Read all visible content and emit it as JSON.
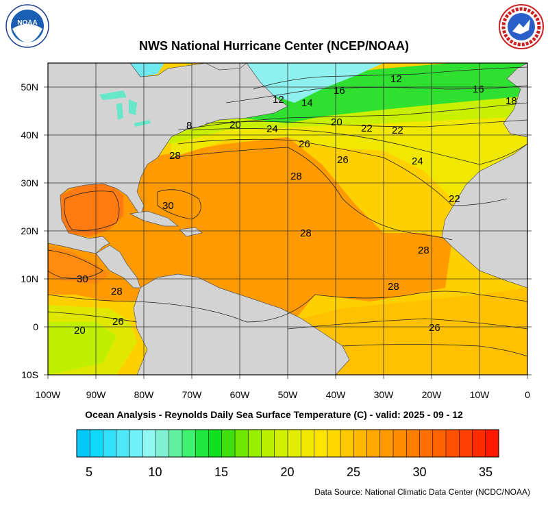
{
  "header": {
    "title": "NWS National Hurricane Center (NCEP/NOAA)",
    "left_logo": "NOAA",
    "right_logo": "NATIONAL WEATHER SERVICE"
  },
  "map": {
    "subtitle": "Ocean Analysis - Reynolds Daily Sea Surface Temperature (C) - valid: 2025 - 09 - 12",
    "lon_labels": [
      "100W",
      "90W",
      "80W",
      "70W",
      "60W",
      "50W",
      "40W",
      "30W",
      "20W",
      "10W",
      "0"
    ],
    "lat_labels": [
      "50N",
      "40N",
      "30N",
      "20N",
      "10N",
      "0",
      "10S"
    ],
    "contour_labels": [
      "12",
      "16",
      "16",
      "18",
      "12",
      "14",
      "8",
      "20",
      "24",
      "20",
      "22",
      "22",
      "28",
      "26",
      "26",
      "24",
      "28",
      "30",
      "22",
      "28",
      "28",
      "30",
      "28",
      "28",
      "26",
      "26",
      "20"
    ],
    "land_color": "#d3d3d3",
    "ocean_colors": {
      "cold": "#8ff0f0",
      "cool": "#30e030",
      "mild": "#c8f000",
      "warm": "#ffd800",
      "hot": "#ff9a00",
      "hottest": "#ff7a10"
    }
  },
  "colorbar": {
    "ticks": [
      "5",
      "10",
      "15",
      "20",
      "25",
      "30",
      "35"
    ],
    "colors": [
      "#00c8f8",
      "#10d8f8",
      "#30e0f8",
      "#50e8f8",
      "#70f0f8",
      "#90f8f0",
      "#80f0d0",
      "#60f0a0",
      "#40f070",
      "#20e840",
      "#10e020",
      "#40e010",
      "#70e800",
      "#98f000",
      "#b8f000",
      "#d0f000",
      "#e0ec00",
      "#f0e800",
      "#ffe400",
      "#ffd800",
      "#ffc800",
      "#ffb800",
      "#ffa800",
      "#ff9a00",
      "#ff8c00",
      "#ff7e00",
      "#ff7000",
      "#ff6200",
      "#ff5200",
      "#ff4000",
      "#ff2c00",
      "#ff1800"
    ]
  },
  "footer": {
    "source": "Data Source: National Climatic Data Center (NCDC/NOAA)"
  }
}
